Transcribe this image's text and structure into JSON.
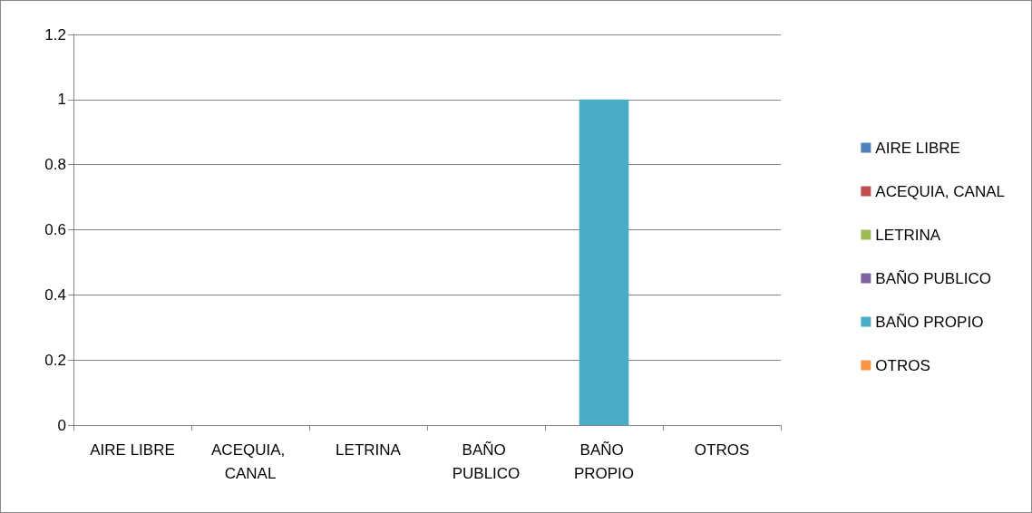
{
  "chart_data": {
    "type": "bar",
    "stacked": true,
    "categories": [
      "AIRE LIBRE",
      "ACEQUIA, CANAL",
      "LETRINA",
      "BAÑO PUBLICO",
      "BAÑO PROPIO",
      "OTROS"
    ],
    "series": [
      {
        "name": "AIRE LIBRE",
        "color": "#4f81bd",
        "values": [
          0,
          null,
          null,
          null,
          null,
          null
        ]
      },
      {
        "name": "ACEQUIA, CANAL",
        "color": "#c0504d",
        "values": [
          null,
          0,
          null,
          null,
          null,
          null
        ]
      },
      {
        "name": "LETRINA",
        "color": "#9bbb59",
        "values": [
          null,
          null,
          0,
          null,
          null,
          null
        ]
      },
      {
        "name": "BAÑO PUBLICO",
        "color": "#8064a2",
        "values": [
          null,
          null,
          null,
          0,
          null,
          null
        ]
      },
      {
        "name": "BAÑO PROPIO",
        "color": "#4bacc6",
        "values": [
          null,
          null,
          null,
          null,
          1,
          null
        ]
      },
      {
        "name": "OTROS",
        "color": "#f79646",
        "values": [
          null,
          null,
          null,
          null,
          null,
          0
        ]
      }
    ],
    "ylim": [
      0,
      1.2
    ],
    "yticks": [
      0,
      0.2,
      0.4,
      0.6,
      0.8,
      1,
      1.2
    ],
    "grid": "y",
    "legend": "right"
  }
}
